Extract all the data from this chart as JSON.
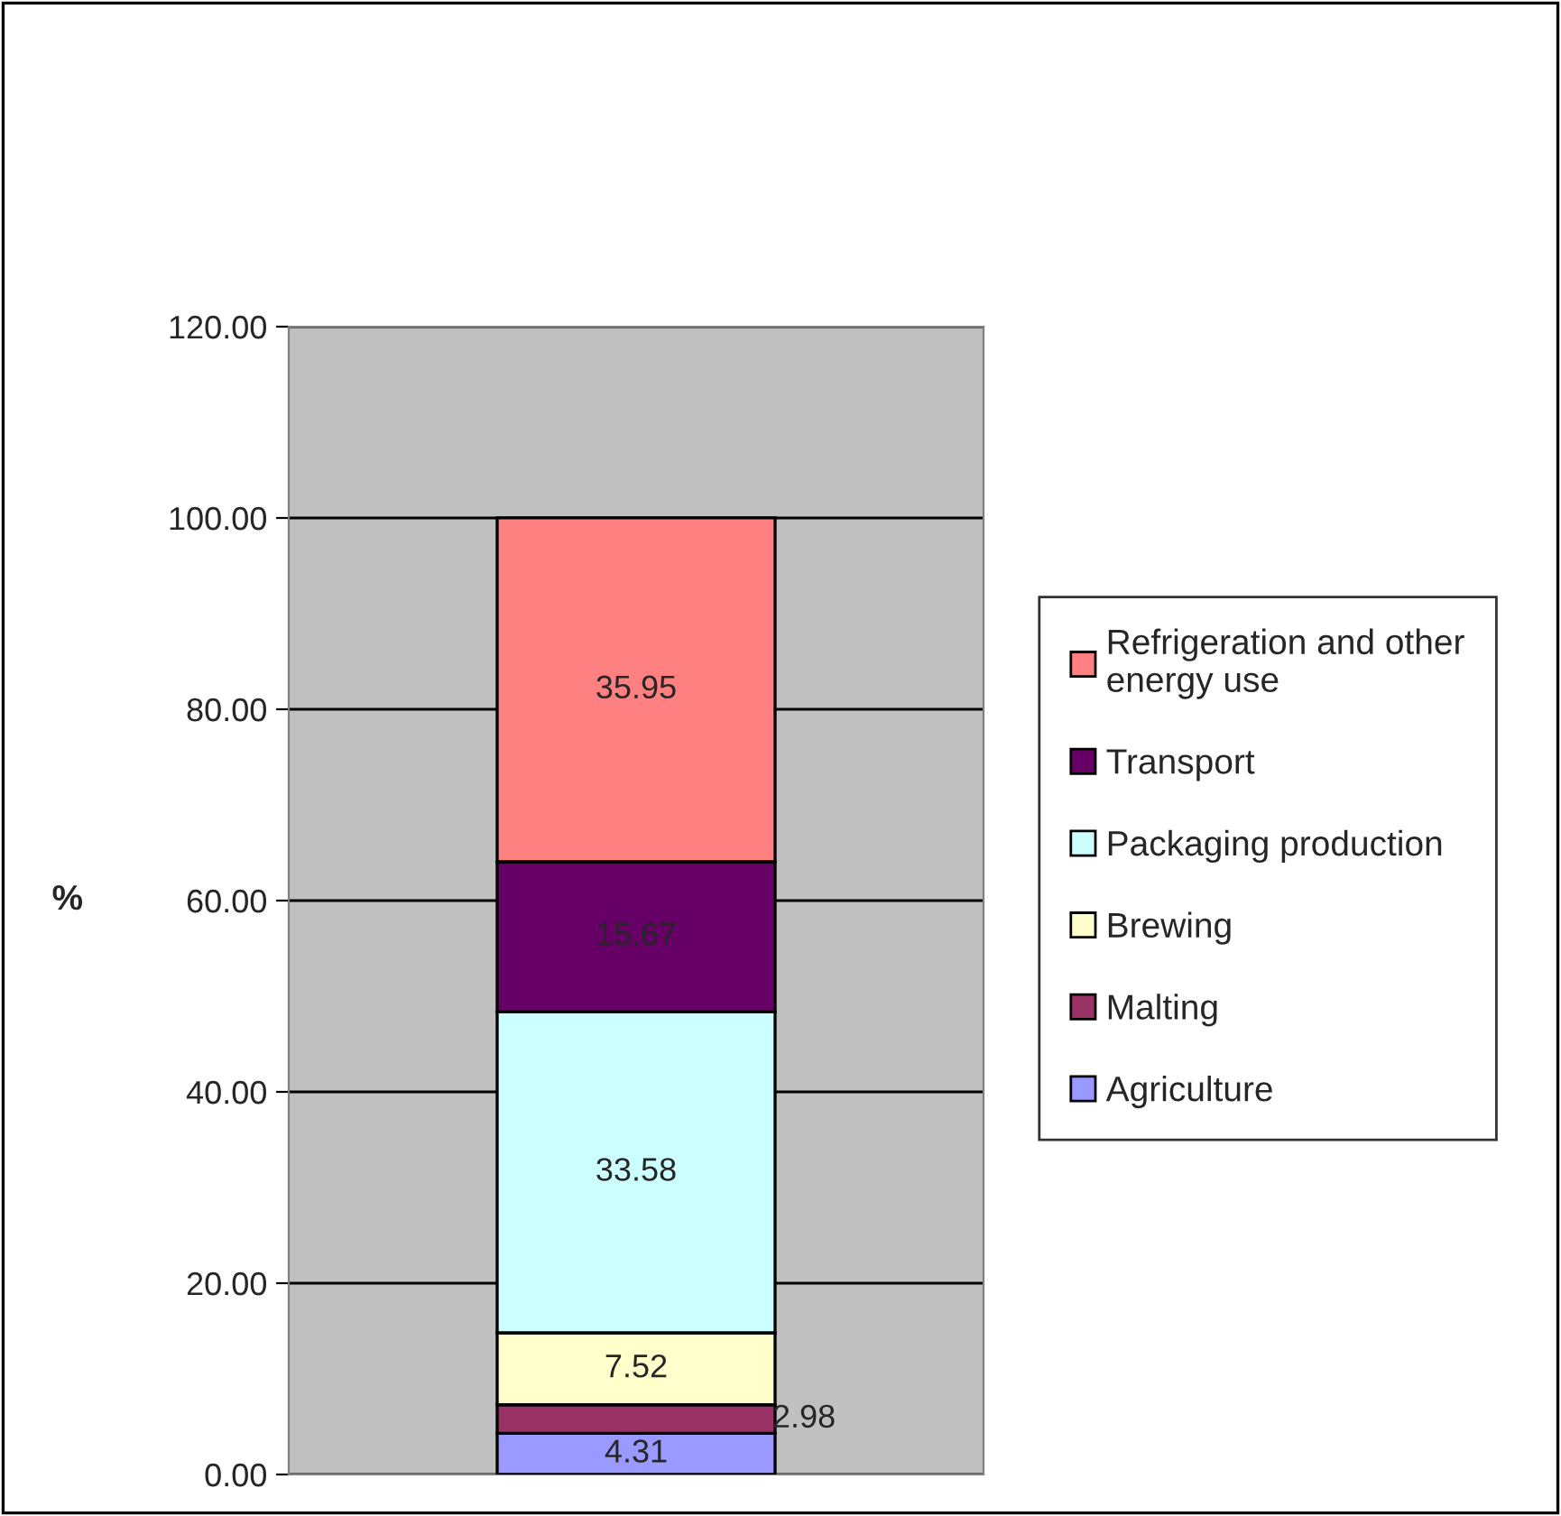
{
  "chart_data": {
    "type": "bar",
    "stacked": true,
    "ylabel": "%",
    "categories": [
      null
    ],
    "series": [
      {
        "name": "Agriculture",
        "color": "#9999ff",
        "values": [
          4.31
        ]
      },
      {
        "name": "Malting",
        "color": "#993366",
        "values": [
          2.98
        ]
      },
      {
        "name": "Brewing",
        "color": "#ffffcc",
        "values": [
          7.52
        ]
      },
      {
        "name": "Packaging production",
        "color": "#ccffff",
        "values": [
          33.58
        ]
      },
      {
        "name": "Transport",
        "color": "#660066",
        "values": [
          15.67
        ]
      },
      {
        "name": "Refrigeration and other\nenergy use",
        "color": "#ff8080",
        "values": [
          35.95
        ]
      }
    ],
    "data_labels": true,
    "ylim": [
      0,
      120
    ],
    "yticks": [
      {
        "value": 0,
        "label": "0.00"
      },
      {
        "value": 20,
        "label": "20.00"
      },
      {
        "value": 40,
        "label": "40.00"
      },
      {
        "value": 60,
        "label": "60.00"
      },
      {
        "value": 80,
        "label": "80.00"
      },
      {
        "value": 100,
        "label": "100.00"
      },
      {
        "value": 120,
        "label": "120.00"
      }
    ],
    "grid": "y",
    "legend": "right"
  }
}
